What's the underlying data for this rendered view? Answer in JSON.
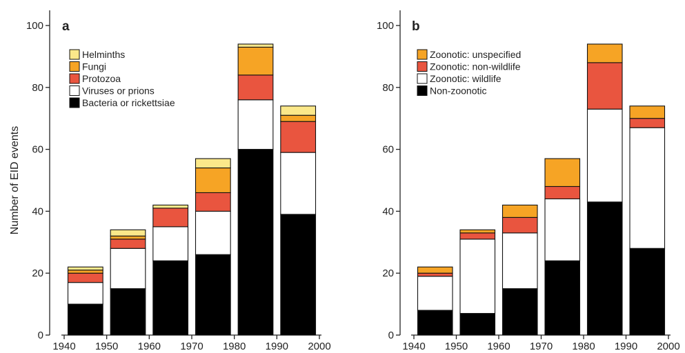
{
  "chart_data": [
    {
      "type": "bar",
      "stacked": true,
      "panel_label": "a",
      "title": "",
      "xlabel": "",
      "ylabel": "Number of EID events",
      "ylim": [
        0,
        100
      ],
      "yticks": [
        0,
        20,
        40,
        60,
        80,
        100
      ],
      "xlim": [
        1940,
        2000
      ],
      "xticks": [
        1940,
        1950,
        1960,
        1970,
        1980,
        1990,
        2000
      ],
      "categories": [
        "1940–1950",
        "1950–1960",
        "1960–1970",
        "1970–1980",
        "1980–1990",
        "1990–2000"
      ],
      "legend_position": "top-left",
      "series": [
        {
          "name": "Bacteria or rickettsiae",
          "color": "#000000",
          "values": [
            10,
            15,
            24,
            26,
            60,
            39
          ]
        },
        {
          "name": "Viruses or prions",
          "color": "#ffffff",
          "values": [
            7,
            13,
            11,
            14,
            16,
            20
          ]
        },
        {
          "name": "Protozoa",
          "color": "#e9553f",
          "values": [
            3,
            3,
            6,
            6,
            8,
            10
          ]
        },
        {
          "name": "Fungi",
          "color": "#f6a425",
          "values": [
            1,
            1,
            0,
            8,
            9,
            2
          ]
        },
        {
          "name": "Helminths",
          "color": "#fbe88a",
          "values": [
            1,
            2,
            1,
            3,
            1,
            3
          ]
        }
      ]
    },
    {
      "type": "bar",
      "stacked": true,
      "panel_label": "b",
      "title": "",
      "xlabel": "",
      "ylabel": "",
      "ylim": [
        0,
        100
      ],
      "yticks": [
        0,
        20,
        40,
        60,
        80,
        100
      ],
      "xlim": [
        1940,
        2000
      ],
      "xticks": [
        1940,
        1950,
        1960,
        1970,
        1980,
        1990,
        2000
      ],
      "categories": [
        "1940–1950",
        "1950–1960",
        "1960–1970",
        "1970–1980",
        "1980–1990",
        "1990–2000"
      ],
      "legend_position": "top-left",
      "series": [
        {
          "name": "Non-zoonotic",
          "color": "#000000",
          "values": [
            8,
            7,
            15,
            24,
            43,
            28
          ]
        },
        {
          "name": "Zoonotic: wildlife",
          "color": "#ffffff",
          "values": [
            11,
            24,
            18,
            20,
            30,
            39
          ]
        },
        {
          "name": "Zoonotic: non-wildlife",
          "color": "#e9553f",
          "values": [
            1,
            2,
            5,
            4,
            15,
            3
          ]
        },
        {
          "name": "Zoonotic: unspecified",
          "color": "#f6a425",
          "values": [
            2,
            1,
            4,
            9,
            6,
            4
          ]
        }
      ]
    }
  ]
}
